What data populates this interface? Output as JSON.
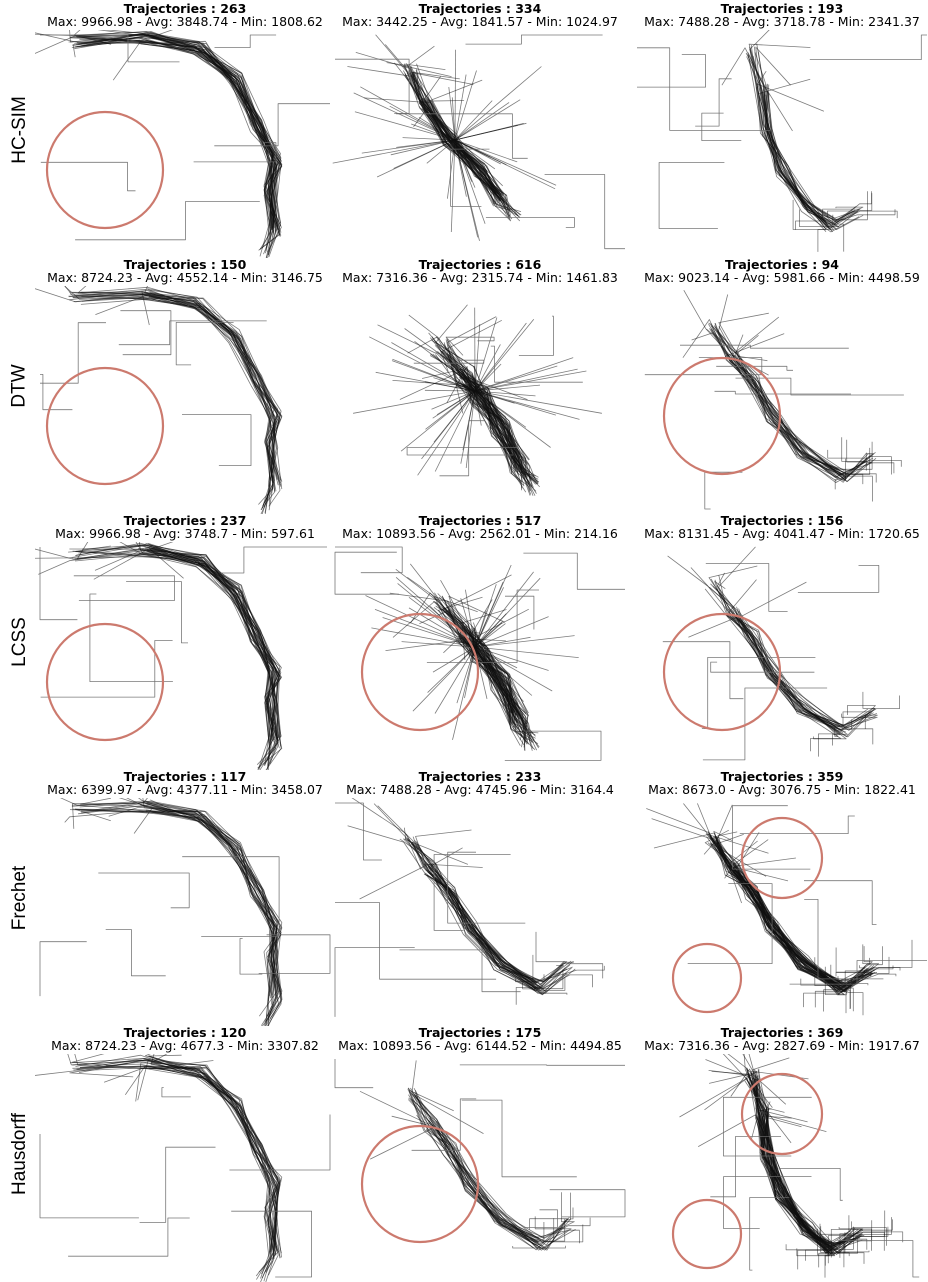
{
  "chart_data": {
    "type": "other",
    "rows": [
      "HC-SIM",
      "DTW",
      "LCSS",
      "Frechet",
      "Hausdorff"
    ],
    "panels": [
      {
        "row": "HC-SIM",
        "col": 1,
        "trajectories": 263,
        "max": "9966.98",
        "avg": "3848.74",
        "min": "1808.62",
        "shape": "curve",
        "circles": 1
      },
      {
        "row": "HC-SIM",
        "col": 2,
        "trajectories": 334,
        "max": "3442.25",
        "avg": "1841.57",
        "min": "1024.97",
        "shape": "cross",
        "circles": 0
      },
      {
        "row": "HC-SIM",
        "col": 3,
        "trajectories": 193,
        "max": "7488.28",
        "avg": "3718.78",
        "min": "2341.37",
        "shape": "diag",
        "circles": 0
      },
      {
        "row": "DTW",
        "col": 1,
        "trajectories": 150,
        "max": "8724.23",
        "avg": "4552.14",
        "min": "3146.75",
        "shape": "curve",
        "circles": 1
      },
      {
        "row": "DTW",
        "col": 2,
        "trajectories": 616,
        "max": "7316.36",
        "avg": "2315.74",
        "min": "1461.83",
        "shape": "burst",
        "circles": 0
      },
      {
        "row": "DTW",
        "col": 3,
        "trajectories": 94,
        "max": "9023.14",
        "avg": "5981.66",
        "min": "4498.59",
        "shape": "grid",
        "circles": 1
      },
      {
        "row": "LCSS",
        "col": 1,
        "trajectories": 237,
        "max": "9966.98",
        "avg": "3748.7",
        "min": "597.61",
        "shape": "curve",
        "circles": 1
      },
      {
        "row": "LCSS",
        "col": 2,
        "trajectories": 517,
        "max": "10893.56",
        "avg": "2562.01",
        "min": "214.16",
        "shape": "burst",
        "circles": 1
      },
      {
        "row": "LCSS",
        "col": 3,
        "trajectories": 156,
        "max": "8131.45",
        "avg": "4041.47",
        "min": "1720.65",
        "shape": "grid",
        "circles": 1
      },
      {
        "row": "Frechet",
        "col": 1,
        "trajectories": 117,
        "max": "6399.97",
        "avg": "4377.11",
        "min": "3458.07",
        "shape": "curve",
        "circles": 0
      },
      {
        "row": "Frechet",
        "col": 2,
        "trajectories": 233,
        "max": "7488.28",
        "avg": "4745.96",
        "min": "3164.4",
        "shape": "grid",
        "circles": 0
      },
      {
        "row": "Frechet",
        "col": 3,
        "trajectories": 359,
        "max": "8673.0",
        "avg": "3076.75",
        "min": "1822.41",
        "shape": "grid",
        "circles": 2
      },
      {
        "row": "Hausdorff",
        "col": 1,
        "trajectories": 120,
        "max": "8724.23",
        "avg": "4677.3",
        "min": "3307.82",
        "shape": "curve",
        "circles": 0
      },
      {
        "row": "Hausdorff",
        "col": 2,
        "trajectories": 175,
        "max": "10893.56",
        "avg": "6144.52",
        "min": "4494.85",
        "shape": "grid",
        "circles": 1
      },
      {
        "row": "Hausdorff",
        "col": 3,
        "trajectories": 369,
        "max": "7316.36",
        "avg": "2827.69",
        "min": "1917.67",
        "shape": "diag",
        "circles": 2
      }
    ],
    "colors": {
      "trajectory": "#111111",
      "circle": "#cc7a6e"
    }
  },
  "labels": {
    "trajectories_prefix": "Trajectories : ",
    "max_prefix": "Max: ",
    "avg_prefix": " - Avg: ",
    "min_prefix": " - Min: "
  }
}
